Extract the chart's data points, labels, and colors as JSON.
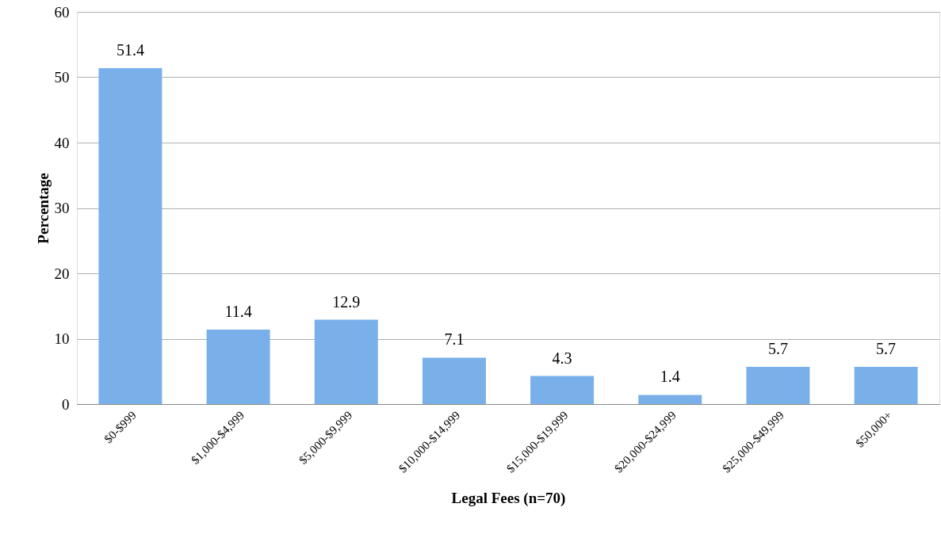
{
  "chart_data": {
    "type": "bar",
    "xlabel": "Legal Fees (n=70)",
    "ylabel": "Percentage",
    "categories": [
      "$0-$999",
      "$1,000-$4,999",
      "$5,000-$9,999",
      "$10,000-$14,999",
      "$15,000-$19,999",
      "$20,000-$24,999",
      "$25,000-$49,999",
      "$50,000+"
    ],
    "values": [
      51.4,
      11.4,
      12.9,
      7.1,
      4.3,
      1.4,
      5.7,
      5.7
    ],
    "color": "#79b0ea",
    "ylim": [
      0,
      60
    ],
    "yticks": [
      0,
      10,
      20,
      30,
      40,
      50,
      60
    ],
    "grid": "y",
    "data_labels": true
  }
}
